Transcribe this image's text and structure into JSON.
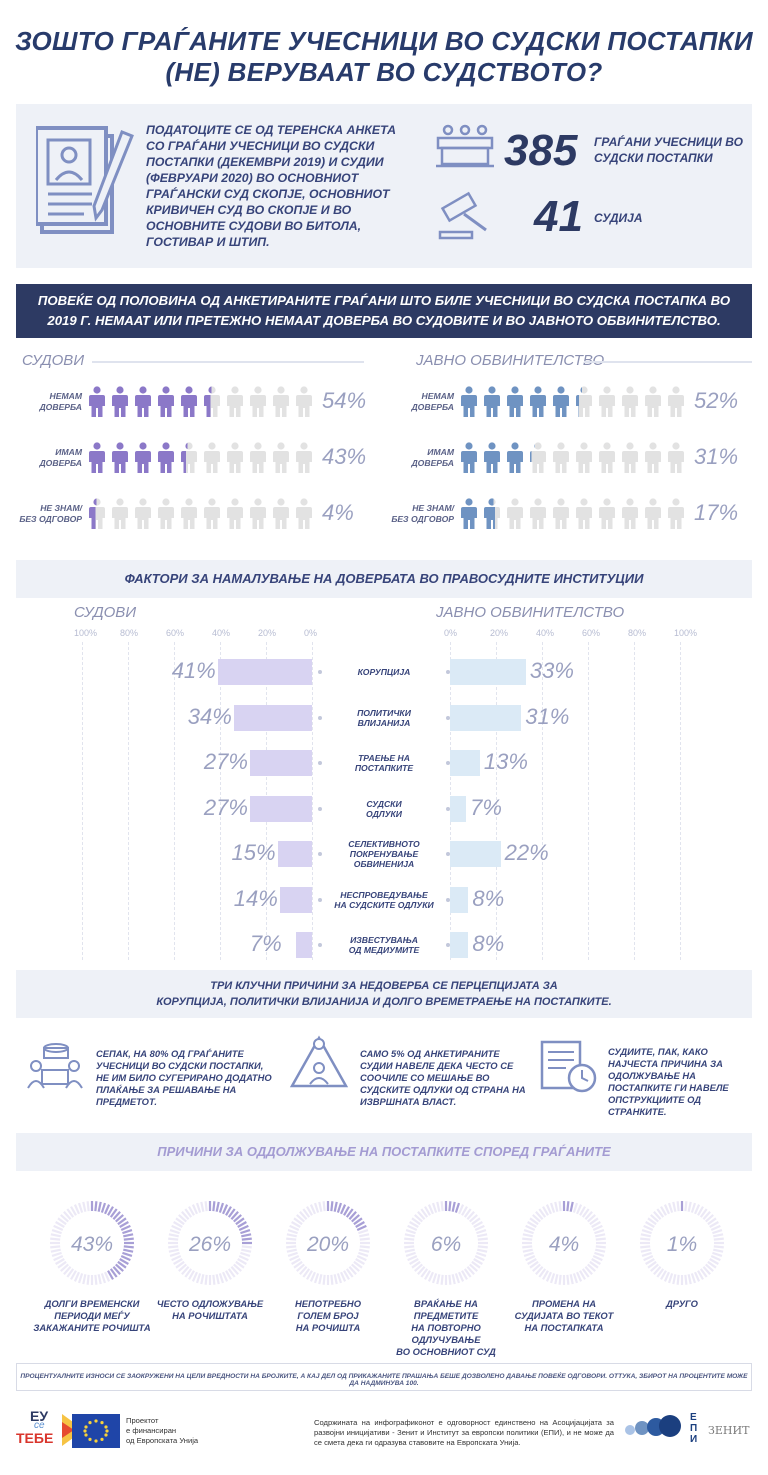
{
  "header": {
    "title_line1": "ЗОШТО ГРАЃАНИТЕ УЧЕСНИЦИ ВО СУДСКИ ПОСТАПКИ",
    "title_line2": "(НЕ) ВЕРУВААТ ВО СУДСТВОТО?"
  },
  "intro": {
    "text": "ПОДАТОЦИТЕ СЕ ОД ТЕРЕНСКА АНКЕТА СО ГРАЃАНИ УЧЕСНИЦИ ВО СУДСКИ ПОСТАПКИ (ДЕКЕМВРИ 2019) И СУДИИ (ФЕВРУАРИ 2020) ВО ОСНОВНИОТ ГРАЃАНСКИ СУД СКОПЈЕ, ОСНОВНИОТ КРИВИЧЕН СУД ВО СКОПЈЕ И ВО ОСНОВНИТЕ СУДОВИ ВО БИТОЛА, ГОСТИВАР И ШТИП.",
    "citizens_number": "385",
    "citizens_label": "ГРАЃАНИ УЧЕСНИЦИ ВО СУДСКИ ПОСТАПКИ",
    "judges_number": "41",
    "judges_label": "СУДИЈА"
  },
  "banner": {
    "line1": "ПОВЕЌЕ ОД ПОЛОВИНА ОД АНКЕТИРАНИТЕ ГРАЃАНИ ШТО БИЛЕ УЧЕСНИЦИ ВО СУДСКА ПОСТАПКА ВО",
    "line2": "2019 Г. НЕМААТ ИЛИ ПРЕТЕЖНО НЕМААТ ДОВЕРБА ВО СУДОВИТЕ И ВО ЈАВНОТО ОБВИНИТЕЛСТВО."
  },
  "trust": {
    "courts_title": "СУДОВИ",
    "prosecution_title": "ЈАВНО ОБВИНИТЕЛСТВО",
    "courts_color": "#8b78c8",
    "prosecution_color": "#6f93c2",
    "empty_color": "#e2e2e2",
    "courts": [
      {
        "label1": "НЕМАМ",
        "label2": "ДОВЕРБА",
        "pct_text": "54%",
        "value": 54
      },
      {
        "label1": "ИМАМ",
        "label2": "ДОВЕРБА",
        "pct_text": "43%",
        "value": 43
      },
      {
        "label1": "НЕ ЗНАМ/",
        "label2": "БЕЗ ОДГОВОР",
        "pct_text": "4%",
        "value": 4
      }
    ],
    "prosecution": [
      {
        "label1": "НЕМАМ",
        "label2": "ДОВЕРБА",
        "pct_text": "52%",
        "value": 52
      },
      {
        "label1": "ИМАМ",
        "label2": "ДОВЕРБА",
        "pct_text": "31%",
        "value": 31
      },
      {
        "label1": "НЕ ЗНАМ/",
        "label2": "БЕЗ ОДГОВОР",
        "pct_text": "17%",
        "value": 17
      }
    ]
  },
  "factors": {
    "title": "ФАКТОРИ ЗА НАМАЛУВАЊЕ НА ДОВЕРБАТА ВО ПРАВОСУДНИТЕ ИНСТИТУЦИИ",
    "left_title": "СУДОВИ",
    "right_title": "ЈАВНО ОБВИНИТЕЛСТВО",
    "left_ticks": [
      "100%",
      "80%",
      "60%",
      "40%",
      "20%",
      "0%"
    ],
    "right_ticks": [
      "0%",
      "20%",
      "40%",
      "60%",
      "80%",
      "100%"
    ],
    "left_color": "#d8d3f2",
    "right_color": "#dbeaf6"
  },
  "chart_data": {
    "type": "bar",
    "title": "ФАКТОРИ ЗА НАМАЛУВАЊЕ НА ДОВЕРБАТА ВО ПРАВОСУДНИТЕ ИНСТИТУЦИИ",
    "categories": [
      [
        "КОРУПЦИЈА"
      ],
      [
        "ПОЛИТИЧКИ",
        "ВЛИЈАНИЈА"
      ],
      [
        "ТРАЕЊЕ НА",
        "ПОСТАПКИТЕ"
      ],
      [
        "СУДСКИ",
        "ОДЛУКИ"
      ],
      [
        "СЕЛЕКТИВНОТО",
        "ПОКРЕНУВАЊЕ",
        "ОБВИНЕНИЈА"
      ],
      [
        "НЕСПРОВЕДУВАЊЕ",
        "НА СУДСКИТЕ ОДЛУКИ"
      ],
      [
        "ИЗВЕСТУВАЊА",
        "ОД МЕДИУМИТЕ"
      ]
    ],
    "series": [
      {
        "name": "СУДОВИ",
        "values": [
          41,
          34,
          27,
          27,
          15,
          14,
          7
        ],
        "labels": [
          "41%",
          "34%",
          "27%",
          "27%",
          "15%",
          "14%",
          "7%"
        ]
      },
      {
        "name": "ЈАВНО ОБВИНИТЕЛСТВО",
        "values": [
          33,
          31,
          13,
          7,
          22,
          8,
          8
        ],
        "labels": [
          "33%",
          "31%",
          "13%",
          "7%",
          "22%",
          "8%",
          "8%"
        ]
      }
    ],
    "xlim": [
      0,
      100
    ]
  },
  "key": {
    "line1": "ТРИ КЛУЧНИ ПРИЧИНИ ЗА НЕДОВЕРБА СЕ ПЕРЦЕПЦИЈАТА ЗА",
    "line2": "КОРУПЦИЈА, ПОЛИТИЧКИ ВЛИЈАНИЈА И ДОЛГО ВРЕМЕТРАЕЊЕ НА ПОСТАПКИТЕ.",
    "facts": [
      "СЕПАК, НА 80% ОД ГРАЃАНИТЕ УЧЕСНИЦИ ВО СУДСКИ ПОСТАПКИ, НЕ ИМ БИЛО СУГЕРИРАНО ДОДАТНО ПЛАЌАЊЕ ЗА РЕШАВАЊЕ НА ПРЕДМЕТОТ.",
      "САМО 5% ОД АНКЕТИРАНИТЕ СУДИИ НАВЕЛЕ ДЕКА ЧЕСТО СЕ СООЧИЛЕ СО МЕШАЊЕ ВО СУДСКИТЕ ОДЛУКИ ОД СТРАНА НА ИЗВРШНАТА ВЛАСТ.",
      "СУДИИТЕ, ПАК, КАКО НАЈЧЕСТА ПРИЧИНА ЗА ОДОЛЖУВАЊЕ НА ПОСТАПКИТЕ ГИ НАВЕЛЕ ОПСТРУКЦИИТЕ ОД СТРАНКИТЕ."
    ]
  },
  "delays": {
    "title": "ПРИЧИНИ ЗА ОДДОЛЖУВАЊЕ НА ПОСТАПКИТЕ СПОРЕД ГРАЃАНИТЕ",
    "color": "#a89fd6",
    "track": "#ece9f6",
    "items": [
      {
        "pct_text": "43%",
        "value": 43,
        "l1": "ДОЛГИ ВРЕМЕНСКИ",
        "l2": "ПЕРИОДИ МЕЃУ",
        "l3": "ЗАКАЖАНИТЕ РОЧИШТА"
      },
      {
        "pct_text": "26%",
        "value": 26,
        "l1": "ЧЕСТО ОДЛОЖУВАЊЕ",
        "l2": "НА РОЧИШТАТА",
        "l3": ""
      },
      {
        "pct_text": "20%",
        "value": 20,
        "l1": "НЕПОТРЕБНО",
        "l2": "ГОЛЕМ БРОЈ",
        "l3": "НА РОЧИШТА"
      },
      {
        "pct_text": "6%",
        "value": 6,
        "l1": "ВРАЌАЊЕ НА ПРЕДМЕТИТЕ",
        "l2": "НА ПОВТОРНО ОДЛУЧУВАЊЕ",
        "l3": "ВО ОСНОВНИОТ СУД"
      },
      {
        "pct_text": "4%",
        "value": 4,
        "l1": "ПРОМЕНА НА",
        "l2": "СУДИЈАТА ВО ТЕКОТ",
        "l3": "НА ПОСТАПКАТА"
      },
      {
        "pct_text": "1%",
        "value": 1,
        "l1": "ДРУГО",
        "l2": "",
        "l3": ""
      }
    ]
  },
  "note": "ПРОЦЕНТУАЛНИТЕ ИЗНОСИ СЕ ЗАОКРУЖЕНИ НА ЦЕЛИ ВРЕДНОСТИ НА БРОЈКИТЕ, А КАЈ ДЕЛ ОД ПРИКАЖАНИТЕ ПРАШАЊА БЕШЕ ДОЗВОЛЕНО ДАВАЊЕ ПОВЕЌЕ ОДГОВОРИ. ОТТУКА, ЗБИРОТ НА ПРОЦЕНТИТЕ МОЖЕ ДА НАДМИНУВА 100.",
  "footer": {
    "logo_eu_text1": "ЕУ",
    "logo_eu_text2": "се",
    "logo_eu_text3": "ТЕБЕ",
    "project_l1": "Проектот",
    "project_l2": "е финансиран",
    "project_l3": "од Европската Унија",
    "disclaimer": "Содржината на инфографиконот е одговорност единствено на Асоцијацијата за развојни иницијативи - Зенит и Институт за европски политики (ЕПИ), и не може да се смета дека ги одразува ставовите на Европската Унија.",
    "epi_text": "ЕПИ",
    "zenit_text": "ЗЕНИТ"
  }
}
